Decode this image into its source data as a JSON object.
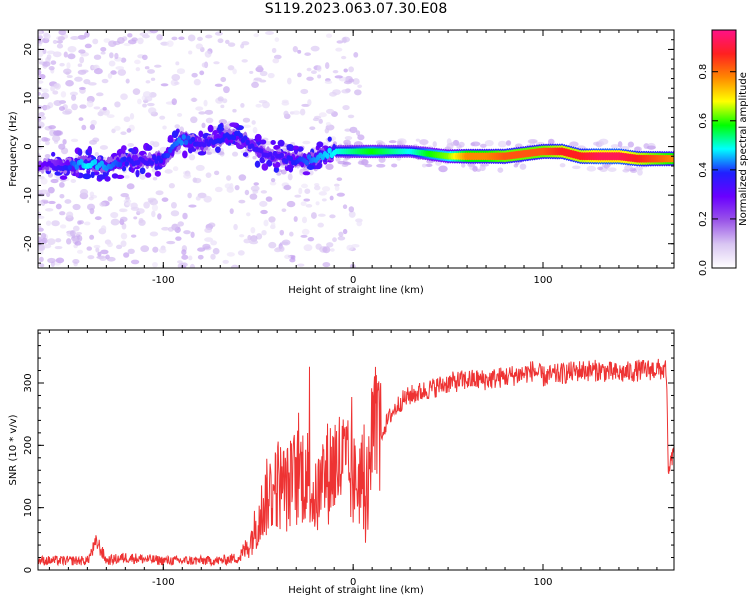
{
  "title": "S119.2023.063.07.30.E08",
  "colors": {
    "snr_line": "#ee3333",
    "colorbar": [
      "#ffffff",
      "#d9c6f2",
      "#9a55e8",
      "#6a00ff",
      "#2020ff",
      "#00ffff",
      "#00ff00",
      "#ffff00",
      "#ff8800",
      "#ff2020",
      "#ff1188"
    ]
  },
  "chart_data": [
    {
      "type": "heatmap",
      "xlabel": "Height of straight line (km)",
      "ylabel": "Frequency (Hz)",
      "xlim": [
        -166,
        169
      ],
      "ylim": [
        -25,
        24
      ],
      "x_ticks": [
        -100,
        0,
        100
      ],
      "y_ticks": [
        -20,
        -10,
        0,
        10,
        20
      ],
      "colorbar": {
        "label": "Normalized spectral amplitude",
        "range": [
          0,
          0.97
        ],
        "ticks": [
          "0.0",
          "0.2",
          "0.4",
          "0.6",
          "0.8"
        ]
      },
      "ridge": {
        "x": [
          -162,
          -150,
          -140,
          -130,
          -120,
          -110,
          -100,
          -90,
          -80,
          -70,
          -60,
          -50,
          -40,
          -30,
          -20,
          -10,
          0,
          10,
          20,
          30,
          40,
          50,
          60,
          70,
          80,
          90,
          100,
          110,
          120,
          130,
          140,
          150,
          160,
          169
        ],
        "f": [
          -4,
          -4,
          -3.5,
          -4,
          -3,
          -3,
          -2.5,
          1.5,
          0.5,
          1.5,
          2.5,
          -1,
          -2,
          -3,
          -2.5,
          -1,
          -1,
          -1,
          -1,
          -1,
          -1.5,
          -2,
          -2,
          -2,
          -2,
          -1.5,
          -1,
          -1,
          -2,
          -2,
          -2,
          -2.5,
          -2.5,
          -2.5
        ],
        "amplitude": [
          0.3,
          0.4,
          0.5,
          0.45,
          0.4,
          0.35,
          0.4,
          0.45,
          0.35,
          0.4,
          0.4,
          0.35,
          0.35,
          0.4,
          0.45,
          0.5,
          0.55,
          0.6,
          0.55,
          0.5,
          0.6,
          0.65,
          0.8,
          0.8,
          0.85,
          0.85,
          0.85,
          0.9,
          0.9,
          0.95,
          0.95,
          0.9,
          0.85,
          0.8
        ]
      }
    },
    {
      "type": "line",
      "xlabel": "Height of straight line (km)",
      "ylabel": "SNR (10 * v/v)",
      "xlim": [
        -166,
        169
      ],
      "ylim": [
        0,
        385
      ],
      "x_ticks": [
        -100,
        0,
        100
      ],
      "y_ticks": [
        0,
        100,
        200,
        300
      ],
      "series": [
        {
          "x": [
            -166,
            -150,
            -140,
            -135,
            -130,
            -120,
            -100,
            -80,
            -70,
            -60,
            -55,
            -50,
            -45,
            -40,
            -35,
            -30,
            -25,
            -20,
            -15,
            -10,
            -5,
            0,
            5,
            8,
            10,
            15,
            20,
            25,
            30,
            40,
            50,
            60,
            70,
            80,
            90,
            95,
            100,
            110,
            120,
            130,
            140,
            150,
            160,
            165,
            166,
            167,
            169
          ],
          "y": [
            15,
            15,
            15,
            45,
            15,
            20,
            15,
            15,
            15,
            20,
            40,
            80,
            120,
            140,
            130,
            150,
            160,
            110,
            150,
            170,
            170,
            140,
            150,
            30,
            210,
            220,
            250,
            270,
            280,
            290,
            300,
            305,
            305,
            310,
            315,
            320,
            310,
            315,
            320,
            320,
            315,
            320,
            322,
            320,
            150,
            170,
            190
          ]
        }
      ]
    }
  ]
}
